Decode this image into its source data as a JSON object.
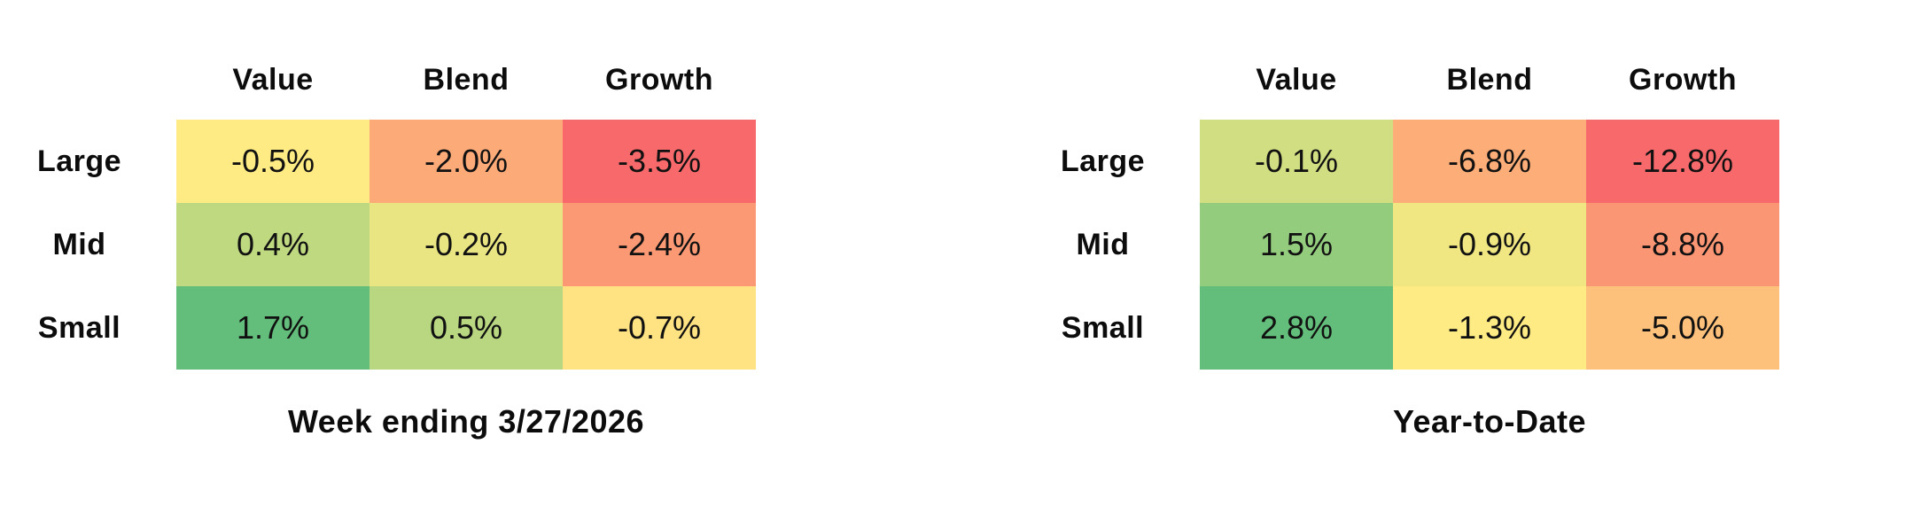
{
  "page": {
    "background_color": "#ffffff",
    "text_color": "#0c0c0c"
  },
  "chart_data": [
    {
      "type": "heatmap",
      "title": "Week ending 3/27/2026",
      "columns": [
        "Value",
        "Blend",
        "Growth"
      ],
      "rows": [
        "Large",
        "Mid",
        "Small"
      ],
      "values": [
        [
          -0.5,
          -2.0,
          -3.5
        ],
        [
          0.4,
          -0.2,
          -2.4
        ],
        [
          1.7,
          0.5,
          -0.7
        ]
      ],
      "labels": [
        [
          "-0.5%",
          "-2.0%",
          "-3.5%"
        ],
        [
          "0.4%",
          "-0.2%",
          "-2.4%"
        ],
        [
          "1.7%",
          "0.5%",
          "-0.7%"
        ]
      ],
      "cell_colors": [
        [
          "#FFEB84",
          "#FCAA78",
          "#F8696B"
        ],
        [
          "#BFD980",
          "#EAE583",
          "#FB9974"
        ],
        [
          "#63BE7B",
          "#B8D780",
          "#FFE282"
        ]
      ],
      "colorscale": {
        "negative": "#F8696B",
        "neutral": "#FFEB84",
        "positive": "#63BE7B"
      },
      "legend_position": "none",
      "grid": false
    },
    {
      "type": "heatmap",
      "title": "Year-to-Date",
      "columns": [
        "Value",
        "Blend",
        "Growth"
      ],
      "rows": [
        "Large",
        "Mid",
        "Small"
      ],
      "values": [
        [
          -0.1,
          -6.8,
          -12.8
        ],
        [
          1.5,
          -0.9,
          -8.8
        ],
        [
          2.8,
          -1.3,
          -5.0
        ]
      ],
      "labels": [
        [
          "-0.1%",
          "-6.8%",
          "-12.8%"
        ],
        [
          "1.5%",
          "-0.9%",
          "-8.8%"
        ],
        [
          "2.8%",
          "-1.3%",
          "-5.0%"
        ]
      ],
      "cell_colors": [
        [
          "#D1DE81",
          "#FCAD78",
          "#F8696B"
        ],
        [
          "#94CC7E",
          "#F0E783",
          "#FA9674"
        ],
        [
          "#63BE7B",
          "#FFEB84",
          "#FDC17C"
        ]
      ],
      "colorscale": {
        "negative": "#F8696B",
        "neutral": "#FFEB84",
        "positive": "#63BE7B"
      },
      "legend_position": "none",
      "grid": false
    }
  ]
}
